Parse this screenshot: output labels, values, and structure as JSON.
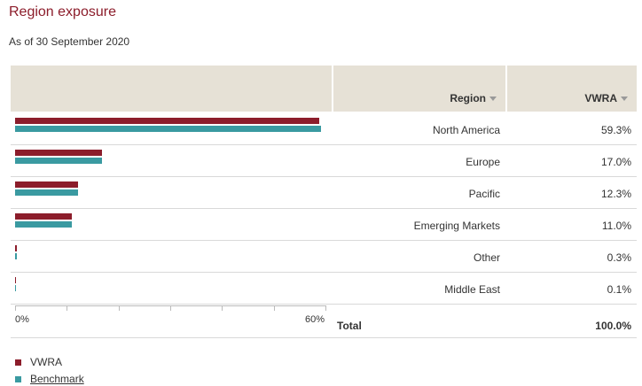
{
  "title": "Region exposure",
  "as_of": "As of 30 September 2020",
  "table": {
    "region_header": "Region",
    "value_header": "VWRA",
    "total_label": "Total",
    "total_value": "100.0%"
  },
  "axis": {
    "min_label": "0%",
    "max_label": "60%",
    "max": 60
  },
  "colors": {
    "fund": "#8c1d2b",
    "benchmark": "#3a9aa1",
    "header_bg": "#e6e1d6"
  },
  "legend": [
    {
      "label": "VWRA",
      "color": "#8c1d2b"
    },
    {
      "label": "Benchmark",
      "color": "#3a9aa1"
    }
  ],
  "chart_data": {
    "type": "bar",
    "orientation": "horizontal",
    "categories": [
      "North America",
      "Europe",
      "Pacific",
      "Emerging Markets",
      "Other",
      "Middle East"
    ],
    "series": [
      {
        "name": "VWRA",
        "values": [
          59.3,
          17.0,
          12.3,
          11.0,
          0.3,
          0.1
        ]
      },
      {
        "name": "Benchmark",
        "values": [
          59.6,
          17.0,
          12.3,
          11.0,
          0.3,
          0.1
        ]
      }
    ],
    "value_labels": [
      "59.3%",
      "17.0%",
      "12.3%",
      "11.0%",
      "0.3%",
      "0.1%"
    ],
    "xlim": [
      0,
      60
    ]
  }
}
